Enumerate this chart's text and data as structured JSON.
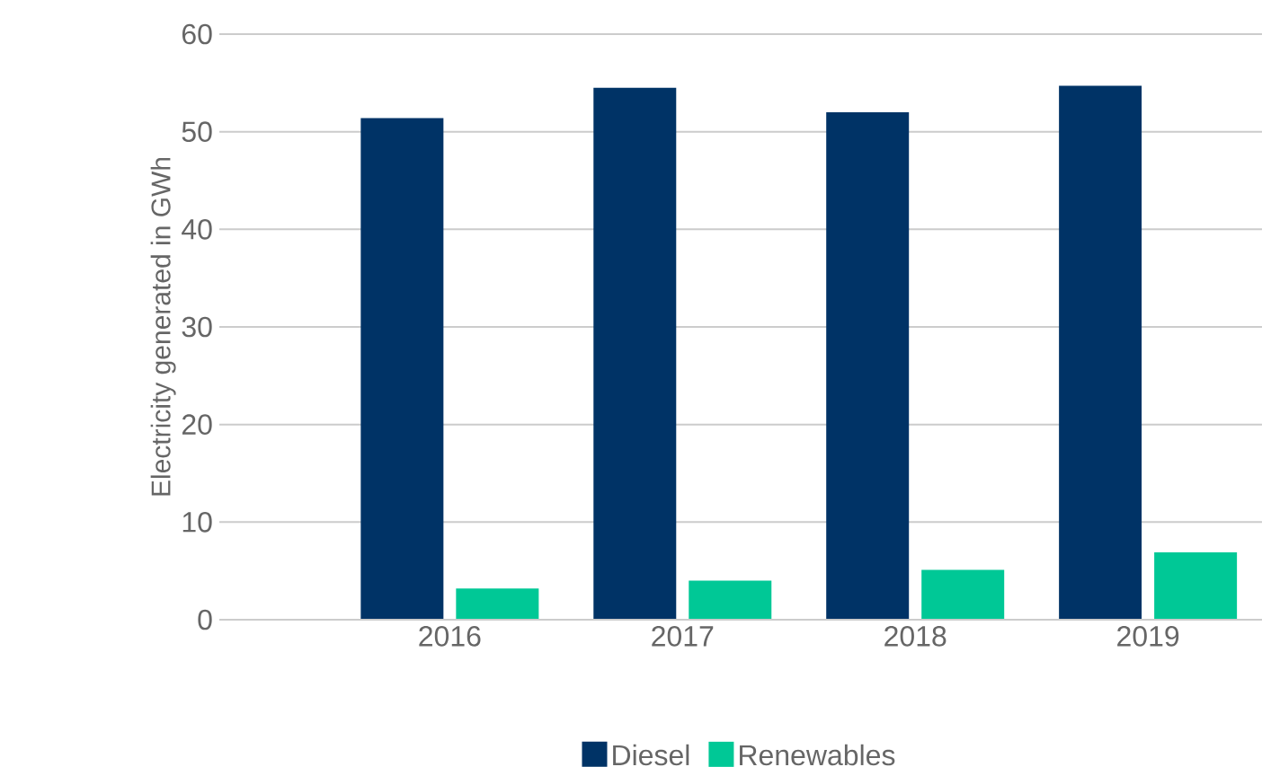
{
  "chart_data": {
    "type": "bar",
    "ylabel": "Electricity generated in GWh",
    "categories": [
      "2016",
      "2017",
      "2018",
      "2019"
    ],
    "series": [
      {
        "name": "Diesel",
        "color": "#003366",
        "values": [
          51.4,
          54.5,
          52.0,
          54.7
        ]
      },
      {
        "name": "Renewables",
        "color": "#00c896",
        "values": [
          3.2,
          4.0,
          5.1,
          6.9
        ]
      }
    ],
    "ylim": [
      0,
      60
    ],
    "yticks": [
      0,
      10,
      20,
      30,
      40,
      50,
      60
    ],
    "grid": "y",
    "legend": "bottom"
  }
}
